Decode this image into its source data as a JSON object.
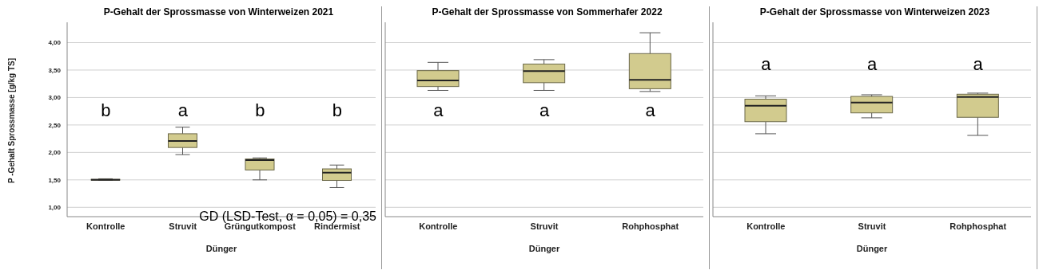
{
  "chart_data": [
    {
      "type": "box",
      "title": "P-Gehalt der Sprossmasse von Winterweizen 2021",
      "xlabel": "Dünger",
      "ylabel": "P -Gehalt Sprossmasse [g/kg TS]",
      "categories": [
        "Kontrolle",
        "Struvit",
        "Grüngutkompost",
        "Rindermist"
      ],
      "color": "#d2cb8e",
      "boxes": [
        {
          "low": 1.49,
          "q1": 1.5,
          "median": 1.5,
          "q3": 1.51,
          "high": 1.52
        },
        {
          "low": 1.96,
          "q1": 2.09,
          "median": 2.21,
          "q3": 2.34,
          "high": 2.46
        },
        {
          "low": 1.5,
          "q1": 1.68,
          "median": 1.86,
          "q3": 1.88,
          "high": 1.9
        },
        {
          "low": 1.36,
          "q1": 1.49,
          "median": 1.63,
          "q3": 1.7,
          "high": 1.77
        }
      ],
      "ylim": [
        0.83,
        4.37
      ],
      "yticks": [
        {
          "value": 1,
          "label": "1,00"
        },
        {
          "value": 1.5,
          "label": "1,50"
        },
        {
          "value": 2,
          "label": "2,00"
        },
        {
          "value": 2.5,
          "label": "2,50"
        },
        {
          "value": 3,
          "label": "3,00"
        },
        {
          "value": 3.5,
          "label": "3,50"
        },
        {
          "value": 4,
          "label": "4,00"
        }
      ],
      "grid": "y",
      "annotations": [
        "b",
        "a",
        "b",
        "b",
        "GD (LSD-Test, α = 0,05) = 0,35"
      ]
    },
    {
      "type": "box",
      "title": "P-Gehalt der Sprossmasse von Sommerhafer 2022",
      "xlabel": "Dünger",
      "categories": [
        "Kontrolle",
        "Struvit",
        "Rohphosphat"
      ],
      "color": "#d2cb8e",
      "boxes": [
        {
          "low": 3.13,
          "q1": 3.2,
          "median": 3.31,
          "q3": 3.49,
          "high": 3.64
        },
        {
          "low": 3.13,
          "q1": 3.27,
          "median": 3.48,
          "q3": 3.61,
          "high": 3.69
        },
        {
          "low": 3.11,
          "q1": 3.16,
          "median": 3.32,
          "q3": 3.8,
          "high": 4.18
        }
      ],
      "ylim": [
        0.83,
        4.37
      ],
      "yticks": [
        1,
        1.5,
        2,
        2.5,
        3,
        3.5,
        4
      ],
      "grid": "y",
      "tick_labels": "x",
      "annotations": [
        "a",
        "a",
        "a"
      ]
    },
    {
      "type": "box",
      "title": "P-Gehalt der Sprossmasse von Winterweizen 2023",
      "xlabel": "Dünger",
      "categories": [
        "Kontrolle",
        "Struvit",
        "Rohphosphat"
      ],
      "color": "#d2cb8e",
      "boxes": [
        {
          "low": 2.34,
          "q1": 2.56,
          "median": 2.85,
          "q3": 2.97,
          "high": 3.03
        },
        {
          "low": 2.63,
          "q1": 2.72,
          "median": 2.91,
          "q3": 3.02,
          "high": 3.05
        },
        {
          "low": 2.31,
          "q1": 2.64,
          "median": 3.01,
          "q3": 3.06,
          "high": 3.08
        }
      ],
      "ylim": [
        0.83,
        4.37
      ],
      "yticks": [
        1,
        1.5,
        2,
        2.5,
        3,
        3.5,
        4
      ],
      "grid": "y",
      "tick_labels": "x",
      "annotations": [
        "a",
        "a",
        "a"
      ]
    }
  ]
}
